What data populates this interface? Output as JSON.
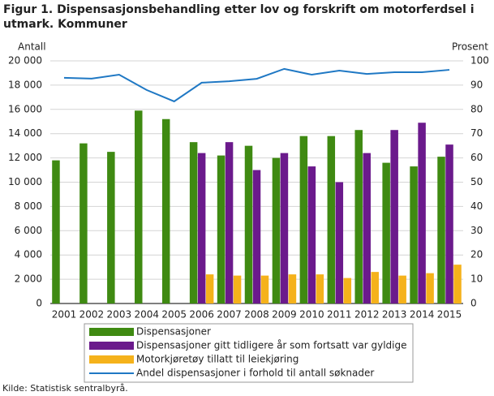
{
  "chart_data": {
    "type": "bar",
    "title": "Figur 1. Dispensasjonsbehandling etter lov og forskrift om motorferdsel i utmark. Kommuner",
    "y_label": "Antall",
    "y2_label": "Prosent",
    "source": "Kilde: Statistisk sentralbyrå.",
    "categories": [
      "2001",
      "2002",
      "2003",
      "2004",
      "2005",
      "2006",
      "2007",
      "2008",
      "2009",
      "2010",
      "2011",
      "2012",
      "2013",
      "2014",
      "2015"
    ],
    "series": [
      {
        "name": "Dispensasjoner",
        "color": "#3f8a12",
        "type": "bar",
        "values": [
          11800,
          13200,
          12500,
          15900,
          15200,
          13300,
          12200,
          13000,
          12000,
          13800,
          13800,
          14300,
          11600,
          11300,
          12100
        ]
      },
      {
        "name": "Dispensasjoner gitt tidligere år som fortsatt var gyldige",
        "color": "#6b1a8c",
        "type": "bar",
        "values": [
          null,
          null,
          null,
          null,
          null,
          12400,
          13300,
          11000,
          12400,
          11300,
          10000,
          12400,
          14300,
          14900,
          13100
        ]
      },
      {
        "name": "Motorkjøretøy tillatt til leiekjøring",
        "color": "#f5b21b",
        "type": "bar",
        "values": [
          null,
          null,
          null,
          null,
          null,
          2400,
          2300,
          2300,
          2400,
          2400,
          2100,
          2600,
          2300,
          2500,
          3200
        ]
      },
      {
        "name": "Andel dispensasjoner i forhold til antall søknader",
        "color": "#1f78c4",
        "type": "line",
        "axis": "y2",
        "values": [
          93,
          92.7,
          94.3,
          88,
          83.3,
          91,
          91.6,
          92.6,
          96.7,
          94.3,
          96,
          94.6,
          95.3,
          95.3,
          96.3
        ]
      }
    ],
    "ylim": [
      0,
      20000
    ],
    "yticks": [
      0,
      {
        "value": 2000,
        "label": "2 000"
      },
      {
        "value": 4000,
        "label": "4 000"
      },
      {
        "value": 6000,
        "label": "6 000"
      },
      {
        "value": 8000,
        "label": "8 000"
      },
      {
        "value": 10000,
        "label": "10 000"
      },
      {
        "value": 12000,
        "label": "12 000"
      },
      {
        "value": 14000,
        "label": "14 000"
      },
      {
        "value": 16000,
        "label": "16 000"
      },
      {
        "value": 18000,
        "label": "18 000"
      },
      {
        "value": 20000,
        "label": "20 000"
      }
    ],
    "y2lim": [
      0,
      100
    ],
    "y2ticks": [
      0,
      10,
      20,
      30,
      40,
      50,
      60,
      70,
      80,
      90,
      100
    ],
    "grid": true
  }
}
